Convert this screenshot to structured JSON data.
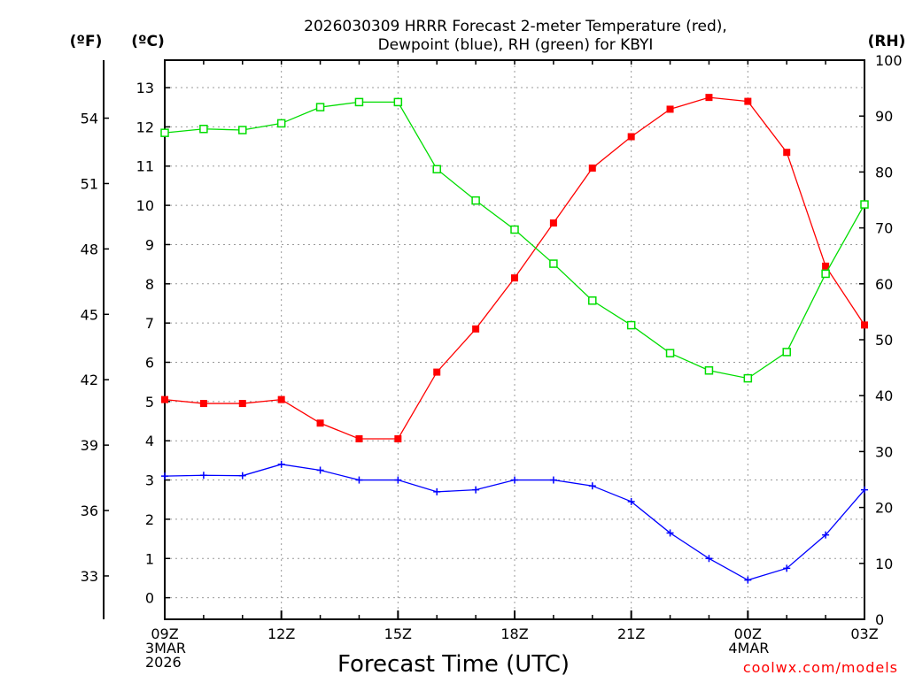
{
  "chart_data": {
    "type": "line",
    "title_lines": [
      "2026030309 HRRR Forecast 2-meter Temperature (red),",
      "Dewpoint (blue), RH (green) for KBYI"
    ],
    "xlabel": "Forecast Time (UTC)",
    "credit": "coolwx.com/models",
    "units": {
      "fahrenheit": "(ºF)",
      "celsius": "(ºC)",
      "rh": "(RH)"
    },
    "x": [
      0,
      1,
      2,
      3,
      4,
      5,
      6,
      7,
      8,
      9,
      10,
      11,
      12,
      13,
      14,
      15,
      16,
      17,
      18
    ],
    "x_ticks": [
      {
        "x": 0,
        "lines": [
          "09Z",
          "3MAR",
          "2026"
        ]
      },
      {
        "x": 3,
        "lines": [
          "12Z"
        ]
      },
      {
        "x": 6,
        "lines": [
          "15Z"
        ]
      },
      {
        "x": 9,
        "lines": [
          "18Z"
        ]
      },
      {
        "x": 12,
        "lines": [
          "21Z"
        ]
      },
      {
        "x": 15,
        "lines": [
          "00Z",
          "4MAR"
        ]
      },
      {
        "x": 18,
        "lines": [
          "03Z"
        ]
      }
    ],
    "celsius_axis": {
      "ylim": [
        -0.55,
        13.7
      ],
      "ticks": [
        0,
        1,
        2,
        3,
        4,
        5,
        6,
        7,
        8,
        9,
        10,
        11,
        12,
        13
      ]
    },
    "fahrenheit_axis": {
      "ticks": [
        33,
        36,
        39,
        42,
        45,
        48,
        51,
        54
      ]
    },
    "rh_axis": {
      "ylim": [
        0,
        100
      ],
      "ticks": [
        0,
        10,
        20,
        30,
        40,
        50,
        60,
        70,
        80,
        90,
        100
      ]
    },
    "series": [
      {
        "name": "Temperature",
        "axis": "celsius",
        "color": "#ff0000",
        "marker": "filled-square",
        "values": [
          5.05,
          4.95,
          4.95,
          5.05,
          4.45,
          4.05,
          4.05,
          5.75,
          6.85,
          8.15,
          9.55,
          10.95,
          11.75,
          12.45,
          12.75,
          12.65,
          11.35,
          8.45,
          6.95
        ]
      },
      {
        "name": "Dewpoint",
        "axis": "celsius",
        "color": "#0000ff",
        "marker": "plus",
        "values": [
          3.1,
          3.12,
          3.11,
          3.4,
          3.25,
          3.0,
          3.0,
          2.7,
          2.75,
          3.0,
          3.0,
          2.85,
          2.45,
          1.65,
          1.0,
          0.45,
          0.75,
          1.6,
          2.75
        ]
      },
      {
        "name": "RH",
        "axis": "rh",
        "color": "#00dd00",
        "marker": "open-square",
        "values": [
          87,
          87.7,
          87.5,
          88.7,
          91.6,
          92.5,
          92.5,
          80.5,
          74.9,
          69.7,
          63.6,
          57.0,
          52.6,
          47.6,
          44.5,
          43.1,
          47.8,
          61.8,
          74.2
        ]
      }
    ]
  }
}
